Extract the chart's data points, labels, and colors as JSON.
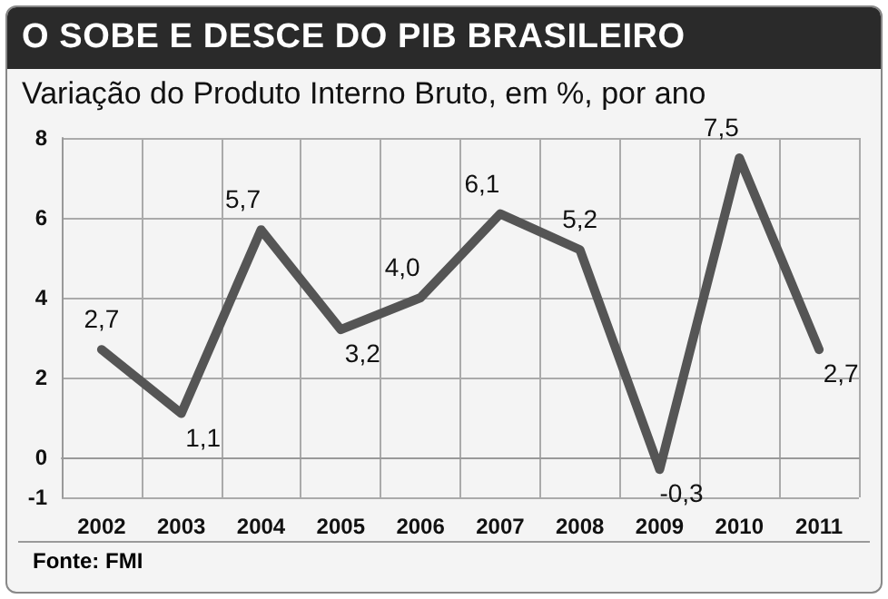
{
  "chart_data": {
    "type": "line",
    "title": "O SOBE E DESCE DO PIB BRASILEIRO",
    "subtitle": "Variação do Produto Interno Bruto, em %, por ano",
    "categories": [
      "2002",
      "2003",
      "2004",
      "2005",
      "2006",
      "2007",
      "2008",
      "2009",
      "2010",
      "2011"
    ],
    "series": [
      {
        "color": "#555555",
        "values": [
          2.7,
          1.1,
          5.7,
          3.2,
          4.0,
          6.1,
          5.2,
          -0.3,
          7.5,
          2.7
        ],
        "value_labels": [
          "2,7",
          "1,1",
          "5,7",
          "3,2",
          "4,0",
          "6,1",
          "5,2",
          "-0,3",
          "7,5",
          "2,7"
        ]
      }
    ],
    "ylim": [
      -1,
      8
    ],
    "yticks": [
      -1,
      0,
      2,
      4,
      6,
      8
    ],
    "grid": true,
    "marker": "none",
    "line_style": "solid",
    "annotations": [
      "Fonte: FMI"
    ]
  }
}
